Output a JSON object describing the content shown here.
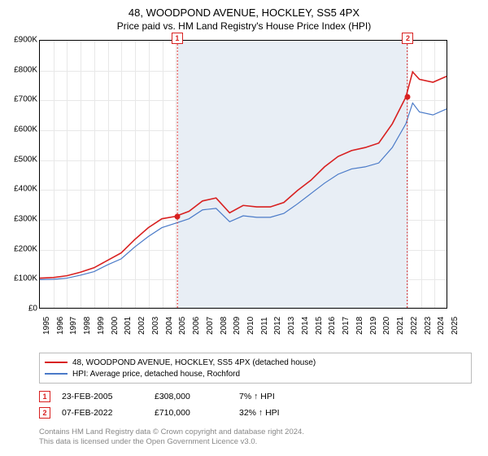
{
  "title": {
    "main": "48, WOODPOND AVENUE, HOCKLEY, SS5 4PX",
    "sub": "Price paid vs. HM Land Registry's House Price Index (HPI)"
  },
  "chart": {
    "type": "line",
    "background_color": "#ffffff",
    "grid_color": "#e8e8e8",
    "shaded_color": "#e8eef5",
    "border_color": "#000000",
    "ylim": [
      0,
      900000
    ],
    "ytick_step": 100000,
    "yticks": [
      "£0",
      "£100K",
      "£200K",
      "£300K",
      "£400K",
      "£500K",
      "£600K",
      "£700K",
      "£800K",
      "£900K"
    ],
    "x_years": [
      1995,
      1996,
      1997,
      1998,
      1999,
      2000,
      2001,
      2002,
      2003,
      2004,
      2005,
      2006,
      2007,
      2008,
      2009,
      2010,
      2011,
      2012,
      2013,
      2014,
      2015,
      2016,
      2017,
      2018,
      2019,
      2020,
      2021,
      2022,
      2023,
      2024,
      2025
    ],
    "shaded_from_year": 2005.15,
    "shaded_to_year": 2022.1,
    "series": [
      {
        "name": "property",
        "label": "48, WOODPOND AVENUE, HOCKLEY, SS5 4PX (detached house)",
        "color": "#d82020",
        "width": 1.6,
        "points": [
          [
            1995,
            100000
          ],
          [
            1996,
            102000
          ],
          [
            1997,
            108000
          ],
          [
            1998,
            120000
          ],
          [
            1999,
            135000
          ],
          [
            2000,
            160000
          ],
          [
            2001,
            185000
          ],
          [
            2002,
            230000
          ],
          [
            2003,
            270000
          ],
          [
            2004,
            300000
          ],
          [
            2005,
            308000
          ],
          [
            2006,
            325000
          ],
          [
            2007,
            360000
          ],
          [
            2008,
            370000
          ],
          [
            2009,
            320000
          ],
          [
            2010,
            345000
          ],
          [
            2011,
            340000
          ],
          [
            2012,
            340000
          ],
          [
            2013,
            355000
          ],
          [
            2014,
            395000
          ],
          [
            2015,
            430000
          ],
          [
            2016,
            475000
          ],
          [
            2017,
            510000
          ],
          [
            2018,
            530000
          ],
          [
            2019,
            540000
          ],
          [
            2020,
            555000
          ],
          [
            2021,
            620000
          ],
          [
            2022,
            710000
          ],
          [
            2022.5,
            795000
          ],
          [
            2023,
            770000
          ],
          [
            2024,
            760000
          ],
          [
            2025,
            780000
          ]
        ]
      },
      {
        "name": "hpi",
        "label": "HPI: Average price, detached house, Rochford",
        "color": "#4a7ac8",
        "width": 1.2,
        "points": [
          [
            1995,
            95000
          ],
          [
            1996,
            96000
          ],
          [
            1997,
            100000
          ],
          [
            1998,
            110000
          ],
          [
            1999,
            122000
          ],
          [
            2000,
            145000
          ],
          [
            2001,
            165000
          ],
          [
            2002,
            205000
          ],
          [
            2003,
            240000
          ],
          [
            2004,
            270000
          ],
          [
            2005,
            285000
          ],
          [
            2006,
            300000
          ],
          [
            2007,
            330000
          ],
          [
            2008,
            335000
          ],
          [
            2009,
            290000
          ],
          [
            2010,
            310000
          ],
          [
            2011,
            305000
          ],
          [
            2012,
            305000
          ],
          [
            2013,
            318000
          ],
          [
            2014,
            350000
          ],
          [
            2015,
            385000
          ],
          [
            2016,
            420000
          ],
          [
            2017,
            450000
          ],
          [
            2018,
            468000
          ],
          [
            2019,
            475000
          ],
          [
            2020,
            488000
          ],
          [
            2021,
            540000
          ],
          [
            2022,
            620000
          ],
          [
            2022.5,
            690000
          ],
          [
            2023,
            660000
          ],
          [
            2024,
            650000
          ],
          [
            2025,
            670000
          ]
        ]
      }
    ],
    "markers": [
      {
        "id": "1",
        "year": 2005.15,
        "value": 308000,
        "box_top": true
      },
      {
        "id": "2",
        "year": 2022.1,
        "value": 710000,
        "box_top": true
      }
    ],
    "marker_line_color": "#d82020"
  },
  "legend": {
    "items": [
      {
        "color": "#d82020",
        "label": "48, WOODPOND AVENUE, HOCKLEY, SS5 4PX (detached house)"
      },
      {
        "color": "#4a7ac8",
        "label": "HPI: Average price, detached house, Rochford"
      }
    ]
  },
  "data_points": [
    {
      "id": "1",
      "date": "23-FEB-2005",
      "price": "£308,000",
      "pct": "7% ↑ HPI"
    },
    {
      "id": "2",
      "date": "07-FEB-2022",
      "price": "£710,000",
      "pct": "32% ↑ HPI"
    }
  ],
  "attribution": {
    "line1": "Contains HM Land Registry data © Crown copyright and database right 2024.",
    "line2": "This data is licensed under the Open Government Licence v3.0."
  },
  "style": {
    "title_fontsize": 13,
    "label_fontsize": 10,
    "legend_fontsize": 10,
    "attribution_color": "#888888"
  }
}
